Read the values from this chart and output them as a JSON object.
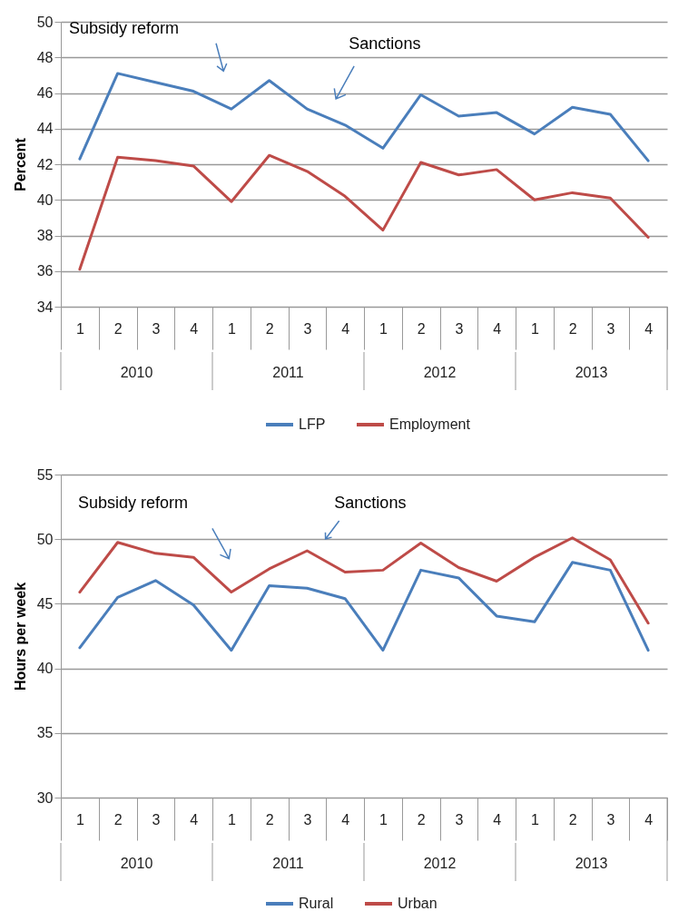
{
  "chart_data": [
    {
      "type": "line",
      "ylabel": "Percent",
      "categories": [
        "1",
        "2",
        "3",
        "4",
        "1",
        "2",
        "3",
        "4",
        "1",
        "2",
        "3",
        "4",
        "1",
        "2",
        "3",
        "4"
      ],
      "series": [
        {
          "name": "LFP",
          "color": "#4a7ebb",
          "values": [
            42.3,
            47.1,
            46.6,
            46.1,
            45.1,
            46.7,
            45.1,
            44.2,
            42.9,
            45.9,
            44.7,
            44.9,
            43.7,
            45.2,
            44.8,
            42.2
          ]
        },
        {
          "name": "Employment",
          "color": "#be4b48",
          "values": [
            36.1,
            42.4,
            42.2,
            41.9,
            39.9,
            42.5,
            41.6,
            40.2,
            38.3,
            42.1,
            41.4,
            41.7,
            40.0,
            40.4,
            40.1,
            37.9
          ]
        }
      ],
      "ylim": [
        34,
        50
      ],
      "yticks": [
        34,
        36,
        38,
        40,
        42,
        44,
        46,
        48,
        50
      ],
      "grid": "y",
      "legend": "bottom",
      "annotations": [
        "Subsidy reform",
        "Sanctions",
        "2010",
        "2011",
        "2012",
        "2013"
      ]
    },
    {
      "type": "line",
      "ylabel": "Hours per week",
      "categories": [
        "1",
        "2",
        "3",
        "4",
        "1",
        "2",
        "3",
        "4",
        "1",
        "2",
        "3",
        "4",
        "1",
        "2",
        "3",
        "4"
      ],
      "series": [
        {
          "name": "Rural",
          "color": "#4a7ebb",
          "values": [
            41.6,
            45.5,
            46.8,
            44.9,
            41.4,
            46.4,
            46.2,
            45.4,
            41.4,
            47.6,
            47.0,
            44.05,
            43.6,
            48.2,
            47.6,
            41.4
          ]
        },
        {
          "name": "Urban",
          "color": "#be4b48",
          "values": [
            45.9,
            49.75,
            48.9,
            48.6,
            45.9,
            47.7,
            49.1,
            47.45,
            47.6,
            49.7,
            47.8,
            46.75,
            48.6,
            50.1,
            48.4,
            43.5
          ]
        }
      ],
      "ylim": [
        30,
        55
      ],
      "yticks": [
        30,
        35,
        40,
        45,
        50,
        55
      ],
      "grid": "y",
      "legend": "bottom",
      "annotations": [
        "Subsidy reform",
        "Sanctions",
        "2010",
        "2011",
        "2012",
        "2013"
      ]
    }
  ]
}
